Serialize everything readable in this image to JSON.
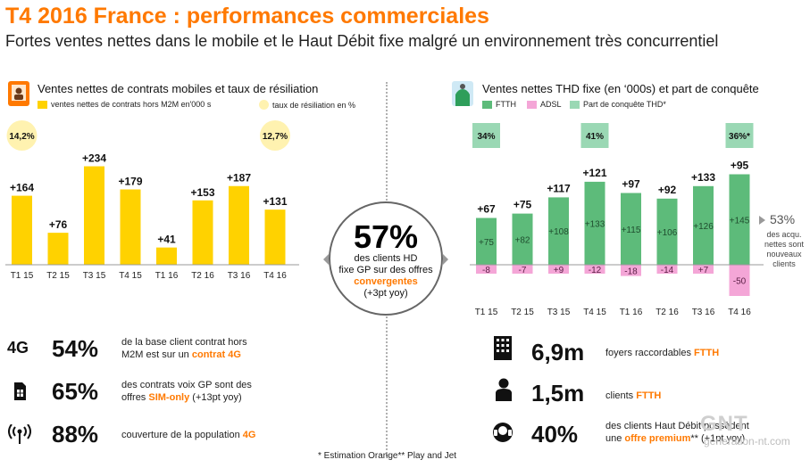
{
  "header": {
    "title": "T4 2016 France : performances commerciales",
    "subtitle": "Fortes ventes nettes dans le mobile et le Haut Débit fixe malgré un  environnement très concurrentiel"
  },
  "left_panel": {
    "title": "Ventes nettes de contrats mobiles et taux de résiliation",
    "legend_bar": "ventes nettes de contrats hors M2M  en'000 s",
    "legend_dot": "taux de résiliation en %",
    "stats": [
      {
        "label": "4G",
        "value": "54%",
        "desc_line1": "de la base client contrat hors",
        "desc_line2_pre": "M2M est sur un ",
        "desc_line2_hl": "contrat 4G",
        "desc_line2_post": ""
      },
      {
        "label": "",
        "value": "65%",
        "desc_line1": "des contrats voix GP sont des",
        "desc_line2_pre": "offres ",
        "desc_line2_hl": "SIM-only",
        "desc_line2_post": "  (+13pt yoy)"
      },
      {
        "label": "",
        "value": "88%",
        "desc_line1": "",
        "desc_line2_pre": "couverture de la population ",
        "desc_line2_hl": "4G",
        "desc_line2_post": ""
      }
    ]
  },
  "center": {
    "big": "57%",
    "line1": "des clients HD",
    "line2": "fixe GP sur des offres",
    "orange": "convergentes",
    "line4": "(+3pt yoy)"
  },
  "right_panel": {
    "title": "Ventes  nettes THD fixe (en ‘000s) et part de conquête",
    "legend_ftth": "FTTH",
    "legend_adsl": "ADSL",
    "legend_share": "Part de conquête THD*",
    "side_pct": "53%",
    "side_text": "des acqu. nettes sont nouveaux clients",
    "stats": [
      {
        "value": "6,9m",
        "pre": "foyers raccordables ",
        "hl": "FTTH",
        "post": "",
        "line1": ""
      },
      {
        "value": "1,5m",
        "pre": "clients ",
        "hl": "FTTH",
        "post": "",
        "line1": ""
      },
      {
        "value": "40%",
        "line1": "des clients Haut Débit possèdent",
        "pre": "une ",
        "hl": "offre premium",
        "post": "** (+1pt yoy)"
      }
    ]
  },
  "footnote": "* Estimation Orange** Play and Jet",
  "watermark": "GNT",
  "watermark_sub": "generation-nt.com",
  "colors": {
    "orange": "#ff7900",
    "yellow": "#ffd200",
    "green": "#5dbb7a",
    "pink": "#f4a6d7",
    "light_green": "#9ad8b4"
  },
  "chart_data": [
    {
      "type": "bar",
      "title": "Ventes nettes de contrats mobiles et taux de résiliation",
      "categories": [
        "T1 15",
        "T2 15",
        "T3 15",
        "T4 15",
        "T1 16",
        "T2 16",
        "T3 16",
        "T4 16"
      ],
      "series": [
        {
          "name": "ventes nettes de contrats hors M2M  en'000 s",
          "values": [
            164,
            76,
            234,
            179,
            41,
            153,
            187,
            131
          ],
          "labels": [
            "+164",
            "+76",
            "+234",
            "+179",
            "+41",
            "+153",
            "+187",
            "+131"
          ]
        }
      ],
      "churn_rate": {
        "name": "taux de résiliation en %",
        "points": [
          {
            "category": "T1 15",
            "label": "14,2%"
          },
          {
            "category": "T4 16",
            "label": "12,7%"
          }
        ]
      },
      "ylim": [
        0,
        250
      ]
    },
    {
      "type": "bar",
      "title": "Ventes  nettes THD fixe (en ‘000s) et part de conquête",
      "categories": [
        "T1 15",
        "T2 15",
        "T3 15",
        "T4 15",
        "T1 16",
        "T2 16",
        "T3 16",
        "T4 16"
      ],
      "series": [
        {
          "name": "FTTH",
          "values": [
            75,
            82,
            108,
            133,
            115,
            106,
            126,
            145
          ],
          "labels": [
            "+75",
            "+82",
            "+108",
            "+133",
            "+115",
            "+106",
            "+126",
            "+145"
          ]
        },
        {
          "name": "ADSL",
          "values": [
            -8,
            -7,
            9,
            -12,
            -18,
            -14,
            7,
            -50
          ],
          "labels": [
            "-8",
            "-7",
            "+9",
            "-12",
            "-18",
            "-14",
            "+7",
            "-50"
          ]
        }
      ],
      "totals": [
        "+67",
        "+75",
        "+117",
        "+121",
        "+97",
        "+92",
        "+133",
        "+95"
      ],
      "share": {
        "name": "Part de conquête THD*",
        "points": [
          {
            "category": "T1 15",
            "label": "34%"
          },
          {
            "category": "T4 15",
            "label": "41%"
          },
          {
            "category": "T4 16",
            "label": "36%*"
          }
        ]
      },
      "ylim": [
        -50,
        150
      ]
    }
  ]
}
